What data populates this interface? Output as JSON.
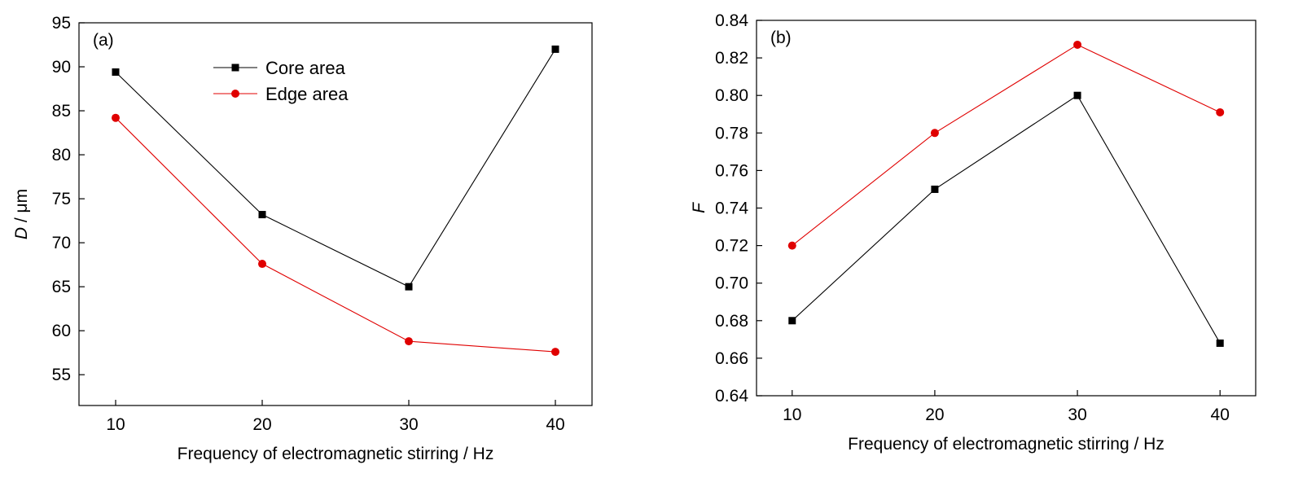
{
  "chart_data": [
    {
      "type": "line",
      "panel_label": "(a)",
      "xlabel": "Frequency of electromagnetic stirring / Hz",
      "ylabel_var": "D",
      "ylabel_unit": " / μm",
      "x": [
        10,
        20,
        30,
        40
      ],
      "xticks": [
        10,
        20,
        30,
        40
      ],
      "xlim": [
        7.5,
        42.5
      ],
      "yticks": [
        55,
        60,
        65,
        70,
        75,
        80,
        85,
        90,
        95
      ],
      "ylim": [
        51.5,
        95
      ],
      "ytick_decimals": 0,
      "grid": false,
      "legend": "top-center",
      "series": [
        {
          "name": "Core area",
          "marker": "square",
          "color": "#000000",
          "values": [
            89.4,
            73.2,
            65.0,
            92.0
          ]
        },
        {
          "name": "Edge area",
          "marker": "circle",
          "color": "#e00000",
          "values": [
            84.2,
            67.6,
            58.8,
            57.6
          ]
        }
      ]
    },
    {
      "type": "line",
      "panel_label": "(b)",
      "xlabel": "Frequency of electromagnetic stirring / Hz",
      "ylabel_var": "F",
      "ylabel_unit": "",
      "x": [
        10,
        20,
        30,
        40
      ],
      "xticks": [
        10,
        20,
        30,
        40
      ],
      "xlim": [
        7.5,
        42.5
      ],
      "yticks": [
        0.64,
        0.66,
        0.68,
        0.7,
        0.72,
        0.74,
        0.76,
        0.78,
        0.8,
        0.82,
        0.84
      ],
      "ylim": [
        0.64,
        0.84
      ],
      "ytick_decimals": 2,
      "grid": false,
      "legend": "none",
      "series": [
        {
          "marker": "square",
          "color": "#000000",
          "values": [
            0.68,
            0.75,
            0.8,
            0.668
          ]
        },
        {
          "marker": "circle",
          "color": "#e00000",
          "values": [
            0.72,
            0.78,
            0.827,
            0.791
          ]
        }
      ]
    }
  ]
}
